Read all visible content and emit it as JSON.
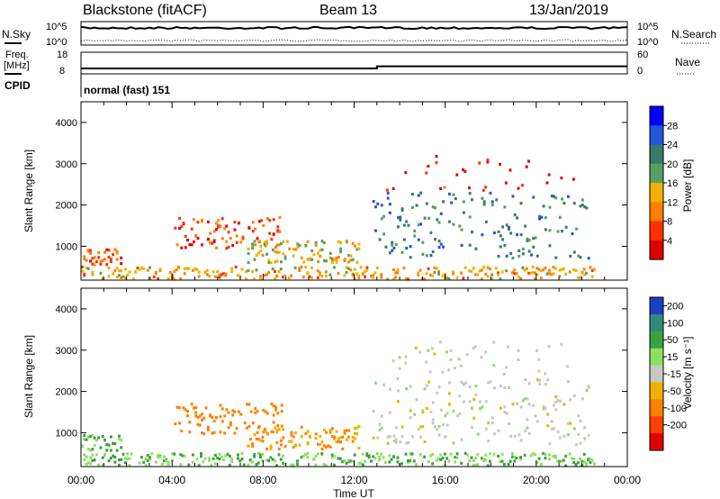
{
  "header": {
    "station": "Blackstone (fitACF)",
    "beam": "Beam 13",
    "date": "13/Jan/2019"
  },
  "summary_panels": {
    "nsky_label": "N.Sky",
    "nsky_ticks": [
      "10^5",
      "10^0"
    ],
    "nsearch_label": "N.Search",
    "nsearch_ticks": [
      "10^5",
      "10^0"
    ],
    "freq_label_1": "Freq.",
    "freq_label_2": "[MHz]",
    "freq_ticks": [
      "18",
      "8"
    ],
    "freq_value_mhz": [
      10.5,
      11.5
    ],
    "freq_step_hour": 13.0,
    "nave_label": "Nave",
    "nave_ticks": [
      "60",
      "0"
    ],
    "cpid_label": "CPID",
    "cpid_value": "normal (fast) 151"
  },
  "chart_data": [
    {
      "type": "heatmap",
      "name": "power",
      "ylabel": "Slant Range [km]",
      "yticks": [
        "1000",
        "2000",
        "3000",
        "4000"
      ],
      "ylim": [
        180,
        4500
      ],
      "xlim": [
        0,
        24
      ],
      "colorbar_label": "Power [dB]",
      "colorbar_ticks": [
        "4",
        "8",
        "12",
        "16",
        "20",
        "24",
        "28"
      ],
      "colorbar_colors": [
        "#0000ff",
        "#2255dd",
        "#3a7a6a",
        "#55a060",
        "#f0b000",
        "#ff8000",
        "#ff3000",
        "#e00000"
      ],
      "echo_regions": [
        {
          "label": "near-range ground scatter",
          "x": [
            0,
            22.5
          ],
          "range_km": [
            200,
            500
          ],
          "power_db": 14
        },
        {
          "label": "early scatter",
          "x": [
            0,
            1.8
          ],
          "range_km": [
            550,
            950
          ],
          "power_db": 9
        },
        {
          "label": "band 1200 km",
          "x": [
            4.0,
            8.8
          ],
          "range_km": [
            950,
            1700
          ],
          "power_db": 8
        },
        {
          "label": "band 800 km",
          "x": [
            7.3,
            12.2
          ],
          "range_km": [
            600,
            1150
          ],
          "power_db": 16
        },
        {
          "label": "main band",
          "x": [
            12.8,
            22.3
          ],
          "range_km": [
            700,
            2300
          ],
          "power_db": 24
        },
        {
          "label": "distant arc",
          "x": [
            13.4,
            21.6
          ],
          "range_km": [
            2300,
            3200
          ],
          "power_db": 6
        }
      ]
    },
    {
      "type": "heatmap",
      "name": "velocity",
      "ylabel": "Slant Range [km]",
      "yticks": [
        "1000",
        "2000",
        "3000",
        "4000"
      ],
      "ylim": [
        180,
        4500
      ],
      "xlim": [
        0,
        24
      ],
      "colorbar_label": "Velocity [m s⁻¹]",
      "colorbar_ticks": [
        "200",
        "100",
        "50",
        "15",
        "-15",
        "-50",
        "-100",
        "-200"
      ],
      "colorbar_colors": [
        "#1840c0",
        "#2e8a7a",
        "#3aa040",
        "#8ce060",
        "#c8c8c0",
        "#f0b000",
        "#ff8000",
        "#ff4000",
        "#e00000"
      ],
      "echo_regions": [
        {
          "label": "near-range",
          "x": [
            0,
            22.5
          ],
          "range_km": [
            200,
            500
          ],
          "velocity_ms": 50
        },
        {
          "label": "early scatter",
          "x": [
            0,
            1.8
          ],
          "range_km": [
            550,
            950
          ],
          "velocity_ms": 50
        },
        {
          "label": "band 1200 km",
          "x": [
            4.0,
            8.8
          ],
          "range_km": [
            950,
            1700
          ],
          "velocity_ms": -80
        },
        {
          "label": "band 800 km",
          "x": [
            7.3,
            12.2
          ],
          "range_km": [
            600,
            1150
          ],
          "velocity_ms": -50
        },
        {
          "label": "main band",
          "x": [
            12.8,
            22.3
          ],
          "range_km": [
            700,
            2300
          ],
          "velocity_ms": 0
        },
        {
          "label": "distant arc",
          "x": [
            13.4,
            21.6
          ],
          "range_km": [
            2300,
            3200
          ],
          "velocity_ms": 0
        }
      ]
    }
  ],
  "x_axis": {
    "label": "Time UT",
    "ticks": [
      "00:00",
      "04:00",
      "08:00",
      "12:00",
      "16:00",
      "20:00",
      "00:00"
    ]
  }
}
